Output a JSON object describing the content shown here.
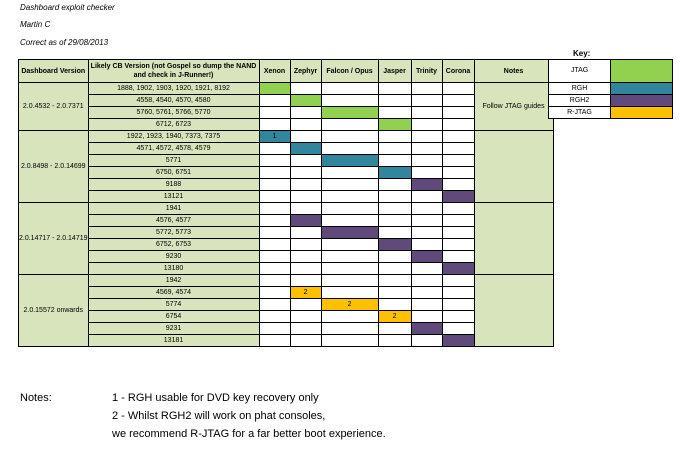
{
  "header": {
    "title": "Dashboard exploit checker",
    "author": "Martin C",
    "date": "Correct as of 29/08/2013"
  },
  "key": {
    "title": "Key:",
    "items": [
      {
        "label": "JTAG",
        "color": "#92d050"
      },
      {
        "label": "RGH",
        "color": "#31859c"
      },
      {
        "label": "RGH2",
        "color": "#604a7b"
      },
      {
        "label": "R-JTAG",
        "color": "#ffc000"
      }
    ]
  },
  "columns": {
    "dashboard": "Dashboard Version",
    "cb": "Likely CB Version (not Gospel so dump the NAND and check in J-Runner!)",
    "consoles": [
      "Xenon",
      "Zephyr",
      "Falcon / Opus",
      "Jasper",
      "Trinity",
      "Corona"
    ],
    "notes": "Notes"
  },
  "groups": [
    {
      "dashboard": "2.0.4532 - 2.0.7371",
      "notes": "Follow JTAG guides",
      "rows": [
        {
          "cb": "1888, 1902, 1903, 1920, 1921, 8192",
          "cells": [
            {
              "c": "j"
            },
            {
              "c": "e"
            },
            {
              "c": "e"
            },
            {
              "c": "e"
            },
            {
              "c": "e"
            },
            {
              "c": "e"
            }
          ]
        },
        {
          "cb": "4558, 4540, 4570, 4580",
          "cells": [
            {
              "c": "e"
            },
            {
              "c": "j"
            },
            {
              "c": "e"
            },
            {
              "c": "e"
            },
            {
              "c": "e"
            },
            {
              "c": "e"
            }
          ]
        },
        {
          "cb": "5760, 5761, 5766, 5770",
          "cells": [
            {
              "c": "e"
            },
            {
              "c": "e"
            },
            {
              "c": "j"
            },
            {
              "c": "e"
            },
            {
              "c": "e"
            },
            {
              "c": "e"
            }
          ]
        },
        {
          "cb": "6712, 6723",
          "cells": [
            {
              "c": "e"
            },
            {
              "c": "e"
            },
            {
              "c": "e"
            },
            {
              "c": "j"
            },
            {
              "c": "e"
            },
            {
              "c": "e"
            }
          ]
        }
      ]
    },
    {
      "dashboard": "2.0.8498 - 2.0.14699",
      "notes": "",
      "rows": [
        {
          "cb": "1922, 1923, 1940, 7373, 7375",
          "cells": [
            {
              "c": "r",
              "t": "1"
            },
            {
              "c": "e"
            },
            {
              "c": "e"
            },
            {
              "c": "e"
            },
            {
              "c": "e"
            },
            {
              "c": "e"
            }
          ]
        },
        {
          "cb": "4571, 4572, 4578, 4579",
          "cells": [
            {
              "c": "e"
            },
            {
              "c": "r"
            },
            {
              "c": "e"
            },
            {
              "c": "e"
            },
            {
              "c": "e"
            },
            {
              "c": "e"
            }
          ]
        },
        {
          "cb": "5771",
          "cells": [
            {
              "c": "e"
            },
            {
              "c": "e"
            },
            {
              "c": "r"
            },
            {
              "c": "e"
            },
            {
              "c": "e"
            },
            {
              "c": "e"
            }
          ]
        },
        {
          "cb": "6750, 6751",
          "cells": [
            {
              "c": "e"
            },
            {
              "c": "e"
            },
            {
              "c": "e"
            },
            {
              "c": "r"
            },
            {
              "c": "e"
            },
            {
              "c": "e"
            }
          ]
        },
        {
          "cb": "9188",
          "cells": [
            {
              "c": "e"
            },
            {
              "c": "e"
            },
            {
              "c": "e"
            },
            {
              "c": "e"
            },
            {
              "c": "r2"
            },
            {
              "c": "e"
            }
          ]
        },
        {
          "cb": "13121",
          "cells": [
            {
              "c": "e"
            },
            {
              "c": "e"
            },
            {
              "c": "e"
            },
            {
              "c": "e"
            },
            {
              "c": "e"
            },
            {
              "c": "r2"
            }
          ]
        }
      ]
    },
    {
      "dashboard": "2.0.14717 - 2.0.14719",
      "notes": "",
      "rows": [
        {
          "cb": "1941",
          "cells": [
            {
              "c": "e"
            },
            {
              "c": "e"
            },
            {
              "c": "e"
            },
            {
              "c": "e"
            },
            {
              "c": "e"
            },
            {
              "c": "e"
            }
          ]
        },
        {
          "cb": "4576, 4577",
          "cells": [
            {
              "c": "e"
            },
            {
              "c": "r2"
            },
            {
              "c": "e"
            },
            {
              "c": "e"
            },
            {
              "c": "e"
            },
            {
              "c": "e"
            }
          ]
        },
        {
          "cb": "5772, 5773",
          "cells": [
            {
              "c": "e"
            },
            {
              "c": "e"
            },
            {
              "c": "r2"
            },
            {
              "c": "e"
            },
            {
              "c": "e"
            },
            {
              "c": "e"
            }
          ]
        },
        {
          "cb": "6752, 6753",
          "cells": [
            {
              "c": "e"
            },
            {
              "c": "e"
            },
            {
              "c": "e"
            },
            {
              "c": "r2"
            },
            {
              "c": "e"
            },
            {
              "c": "e"
            }
          ]
        },
        {
          "cb": "9230",
          "cells": [
            {
              "c": "e"
            },
            {
              "c": "e"
            },
            {
              "c": "e"
            },
            {
              "c": "e"
            },
            {
              "c": "r2"
            },
            {
              "c": "e"
            }
          ]
        },
        {
          "cb": "13180",
          "cells": [
            {
              "c": "e"
            },
            {
              "c": "e"
            },
            {
              "c": "e"
            },
            {
              "c": "e"
            },
            {
              "c": "e"
            },
            {
              "c": "r2"
            }
          ]
        }
      ]
    },
    {
      "dashboard": "2.0.15572 onwards",
      "notes": "",
      "rows": [
        {
          "cb": "1942",
          "cells": [
            {
              "c": "e"
            },
            {
              "c": "e"
            },
            {
              "c": "e"
            },
            {
              "c": "e"
            },
            {
              "c": "e"
            },
            {
              "c": "e"
            }
          ]
        },
        {
          "cb": "4569, 4574",
          "cells": [
            {
              "c": "e"
            },
            {
              "c": "rj",
              "t": "2"
            },
            {
              "c": "e"
            },
            {
              "c": "e"
            },
            {
              "c": "e"
            },
            {
              "c": "e"
            }
          ]
        },
        {
          "cb": "5774",
          "cells": [
            {
              "c": "e"
            },
            {
              "c": "e"
            },
            {
              "c": "rj",
              "t": "2"
            },
            {
              "c": "e"
            },
            {
              "c": "e"
            },
            {
              "c": "e"
            }
          ]
        },
        {
          "cb": "6754",
          "cells": [
            {
              "c": "e"
            },
            {
              "c": "e"
            },
            {
              "c": "e"
            },
            {
              "c": "rj",
              "t": "2"
            },
            {
              "c": "e"
            },
            {
              "c": "e"
            }
          ]
        },
        {
          "cb": "9231",
          "cells": [
            {
              "c": "e"
            },
            {
              "c": "e"
            },
            {
              "c": "e"
            },
            {
              "c": "e"
            },
            {
              "c": "r2"
            },
            {
              "c": "e"
            }
          ]
        },
        {
          "cb": "13181",
          "cells": [
            {
              "c": "e"
            },
            {
              "c": "e"
            },
            {
              "c": "e"
            },
            {
              "c": "e"
            },
            {
              "c": "e"
            },
            {
              "c": "r2"
            }
          ]
        }
      ]
    }
  ],
  "footer": {
    "label": "Notes:",
    "lines": [
      "1 - RGH usable for DVD key recovery only",
      "2 - Whilst RGH2 will work on phat consoles,",
      "we recommend R-JTAG for a far better boot experience."
    ]
  }
}
